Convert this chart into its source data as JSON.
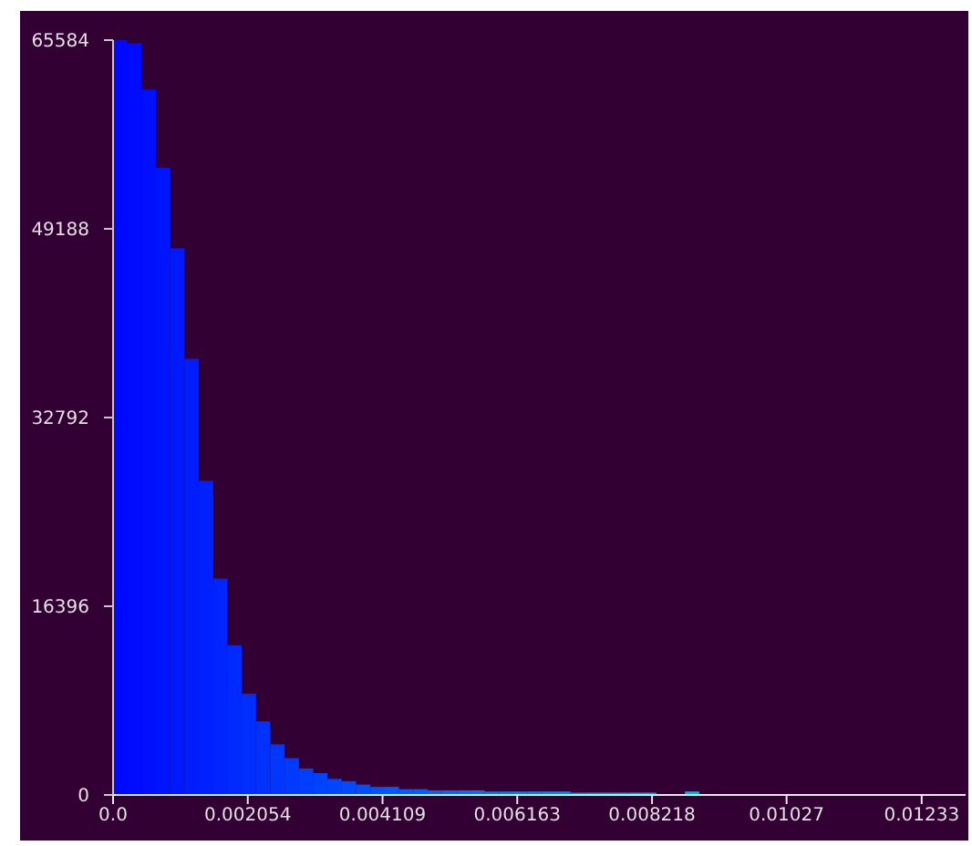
{
  "chart_data": {
    "type": "histogram",
    "bins": [
      0,
      0.000218,
      0.000436,
      0.000654,
      0.000872,
      0.00109,
      0.001308,
      0.001526,
      0.001744,
      0.001962,
      0.00218,
      0.002398,
      0.002616,
      0.002834,
      0.003052,
      0.00327,
      0.003488,
      0.003706,
      0.003924,
      0.004142,
      0.00436,
      0.004578,
      0.004796,
      0.005014,
      0.005232,
      0.00545,
      0.005668,
      0.005886,
      0.006104,
      0.006322,
      0.00654,
      0.006758,
      0.006976,
      0.007194,
      0.007412,
      0.00763,
      0.007848,
      0.008066,
      0.008284,
      0.008502,
      0.00872,
      0.008938
    ],
    "values": [
      65584,
      65300,
      61300,
      54500,
      47500,
      37900,
      27300,
      18800,
      13000,
      8800,
      6400,
      4400,
      3200,
      2300,
      1900,
      1400,
      1200,
      900,
      700,
      700,
      500,
      500,
      400,
      400,
      400,
      400,
      300,
      300,
      300,
      300,
      300,
      300,
      200,
      200,
      200,
      200,
      200,
      200,
      0,
      0,
      300
    ],
    "colors": [
      "#0008ff",
      "#000cff",
      "#0010ff",
      "#0015ff",
      "#0019ff",
      "#001dff",
      "#0021ff",
      "#0025ff",
      "#002aff",
      "#002eff",
      "#0032ff",
      "#0036ff",
      "#003aff",
      "#003fff",
      "#0043ff",
      "#0047ff",
      "#004bff",
      "#004fff",
      "#0054ff",
      "#0058ff",
      "#005cff",
      "#0060ff",
      "#0064ff",
      "#0069ff",
      "#006dff",
      "#0071ff",
      "#0075ff",
      "#0079ff",
      "#007eff",
      "#0082ff",
      "#0086ff",
      "#008aff",
      "#008eff",
      "#0093ff",
      "#0097ff",
      "#009bff",
      "#009fff",
      "#00a3ff",
      "#00a8ff",
      "#00acff",
      "#00b0ff"
    ],
    "xlim": [
      0,
      0.013
    ],
    "xticks": [
      {
        "value": 0,
        "label": "0.0"
      },
      0.002054,
      0.004109,
      0.006163,
      0.008218,
      0.01027,
      0.01233
    ],
    "ylim": [
      0,
      65584
    ],
    "yticks": [
      0,
      16396,
      32792,
      49188,
      65584
    ]
  }
}
